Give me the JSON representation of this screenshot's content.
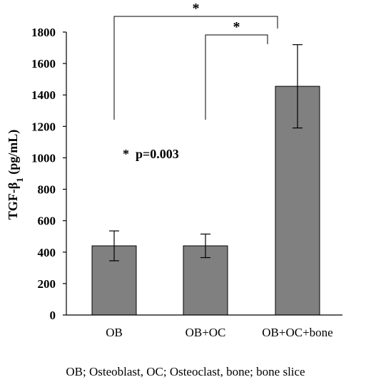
{
  "chart_data": {
    "type": "bar",
    "categories": [
      "OB",
      "OB+OC",
      "OB+OC+bone"
    ],
    "values": [
      440,
      440,
      1455
    ],
    "errors": [
      95,
      75,
      265
    ],
    "ylabel": "TGF-β1 (pg/mL)",
    "ylabel_main": "TGF-β",
    "ylabel_sub": "1",
    "ylabel_unit": " (pg/mL)",
    "ylim": [
      0,
      1800
    ],
    "yticks": [
      "0",
      "200",
      "400",
      "600",
      "800",
      "1000",
      "1200",
      "1400",
      "1600",
      "1800"
    ],
    "bar_color": "#808080",
    "grid": false,
    "annotation": "*  p=0.003",
    "significance": [
      {
        "from": "OB",
        "to": "OB+OC+bone",
        "label": "*"
      },
      {
        "from": "OB+OC",
        "to": "OB+OC+bone",
        "label": "*"
      }
    ],
    "footnote": "OB; Osteoblast, OC; Osteoclast, bone; bone slice"
  }
}
